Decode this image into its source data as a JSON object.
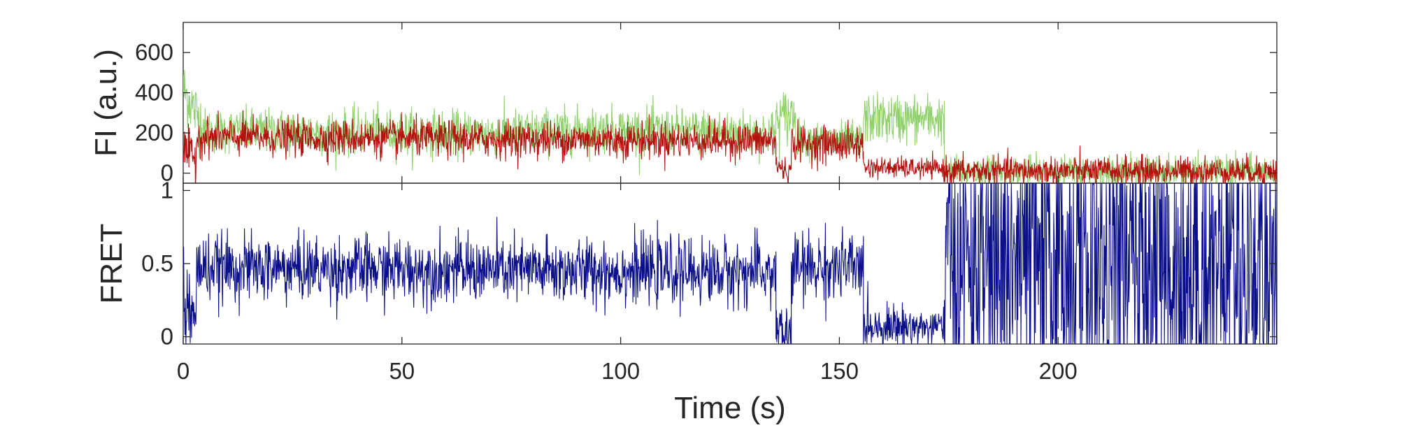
{
  "chart_data": [
    {
      "type": "line",
      "title": "",
      "ylabel": "FI (a.u.)",
      "xlabel": "",
      "xlim": [
        0,
        250
      ],
      "ylim": [
        -50,
        750
      ],
      "yticks": [
        0,
        200,
        400,
        600
      ],
      "ytick_labels": [
        "0",
        "200",
        "400",
        "600"
      ],
      "xticks": [
        0,
        50,
        100,
        150,
        200
      ],
      "grid": false,
      "legend": "none",
      "series": [
        {
          "color": "#8fd16a",
          "segments": [
            {
              "start": 0,
              "end": 5,
              "from": 420,
              "to": 220,
              "noise": 75
            },
            {
              "start": 5,
              "end": 60,
              "from": 210,
              "to": 200,
              "noise": 55
            },
            {
              "start": 60,
              "end": 100,
              "from": 195,
              "to": 220,
              "noise": 55
            },
            {
              "start": 100,
              "end": 135.5,
              "from": 215,
              "to": 200,
              "noise": 55
            },
            {
              "start": 135.5,
              "end": 140,
              "from": 260,
              "to": 300,
              "noise": 70
            },
            {
              "start": 140,
              "end": 155.5,
              "from": 170,
              "to": 160,
              "noise": 45
            },
            {
              "start": 155.5,
              "end": 174,
              "from": 270,
              "to": 270,
              "noise": 60
            },
            {
              "start": 174,
              "end": 250,
              "from": 5,
              "to": 5,
              "noise": 40
            }
          ]
        },
        {
          "color": "#b3120f",
          "segments": [
            {
              "start": 0,
              "end": 3,
              "from": 120,
              "to": 60,
              "noise": 55
            },
            {
              "start": 3,
              "end": 135.5,
              "from": 180,
              "to": 160,
              "noise": 45
            },
            {
              "start": 135.5,
              "end": 139,
              "from": 40,
              "to": 0,
              "noise": 30
            },
            {
              "start": 139,
              "end": 155.5,
              "from": 150,
              "to": 140,
              "noise": 45
            },
            {
              "start": 155.5,
              "end": 174,
              "from": 30,
              "to": 20,
              "noise": 25
            },
            {
              "start": 174,
              "end": 250,
              "from": 10,
              "to": 10,
              "noise": 35
            }
          ]
        }
      ]
    },
    {
      "type": "line",
      "title": "",
      "ylabel": "FRET",
      "xlabel": "Time (s)",
      "xlim": [
        0,
        250
      ],
      "ylim": [
        -0.05,
        1.05
      ],
      "yticks": [
        0,
        0.5,
        1
      ],
      "ytick_labels": [
        "0",
        "0.5",
        "1"
      ],
      "xticks": [
        0,
        50,
        100,
        150,
        200
      ],
      "xtick_labels": [
        "0",
        "50",
        "100",
        "150",
        "200"
      ],
      "grid": false,
      "legend": "none",
      "series": [
        {
          "color": "#0b0f8a",
          "clip": [
            -0.05,
            1.05
          ],
          "segments": [
            {
              "start": 0,
              "end": 3,
              "from": 0.25,
              "to": 0.05,
              "noise": 0.2
            },
            {
              "start": 3,
              "end": 135.5,
              "from": 0.47,
              "to": 0.44,
              "noise": 0.11
            },
            {
              "start": 135.5,
              "end": 139,
              "from": 0.05,
              "to": 0.0,
              "noise": 0.1
            },
            {
              "start": 139,
              "end": 155.5,
              "from": 0.47,
              "to": 0.47,
              "noise": 0.12
            },
            {
              "start": 155.5,
              "end": 174,
              "from": 0.08,
              "to": 0.06,
              "noise": 0.07
            },
            {
              "start": 174,
              "end": 250,
              "from": 0.5,
              "to": 0.5,
              "noise": 0.6
            }
          ]
        }
      ]
    }
  ]
}
